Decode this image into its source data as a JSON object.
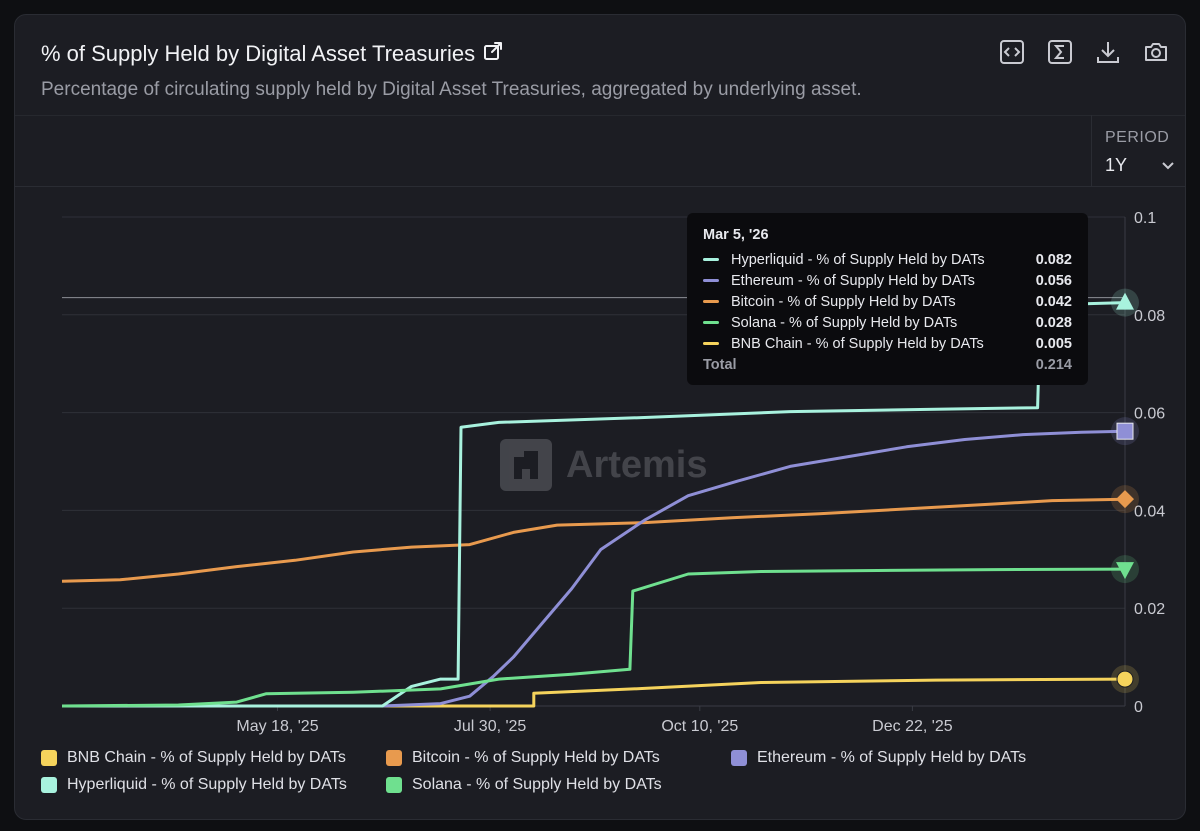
{
  "header": {
    "title": "% of Supply Held by Digital Asset Treasuries",
    "subtitle": "Percentage of circulating supply held by Digital Asset Treasuries, aggregated by underlying asset."
  },
  "toolbar": {
    "icons": [
      "embed-code-icon",
      "sum-icon",
      "download-icon",
      "camera-icon"
    ]
  },
  "period": {
    "label": "PERIOD",
    "value": "1Y"
  },
  "watermark": "Artemis",
  "tooltip": {
    "date": "Mar 5, '26",
    "rows": [
      {
        "label": "Hyperliquid - % of Supply Held by DATs",
        "value": "0.082",
        "color": "#a8f2de"
      },
      {
        "label": "Ethereum - % of Supply Held by DATs",
        "value": "0.056",
        "color": "#8f8fd6"
      },
      {
        "label": "Bitcoin - % of Supply Held by DATs",
        "value": "0.042",
        "color": "#e89a4e"
      },
      {
        "label": "Solana - % of Supply Held by DATs",
        "value": "0.028",
        "color": "#6fe08f"
      },
      {
        "label": "BNB Chain - % of Supply Held by DATs",
        "value": "0.005",
        "color": "#f5d35c"
      }
    ],
    "total_label": "Total",
    "total_value": "0.214"
  },
  "legend": [
    {
      "label": "BNB Chain - % of Supply Held by DATs",
      "color": "#f5d35c"
    },
    {
      "label": "Bitcoin - % of Supply Held by DATs",
      "color": "#e89a4e"
    },
    {
      "label": "Ethereum - % of Supply Held by DATs",
      "color": "#8f8fd6"
    },
    {
      "label": "Hyperliquid - % of Supply Held by DATs",
      "color": "#a8f2de"
    },
    {
      "label": "Solana - % of Supply Held by DATs",
      "color": "#6fe08f"
    }
  ],
  "chart_data": {
    "type": "line",
    "title": "% of Supply Held by Digital Asset Treasuries",
    "xlabel": "",
    "ylabel": "",
    "xlim": [
      0,
      365
    ],
    "ylim": [
      0,
      0.1
    ],
    "y_ticks": [
      "0",
      "0.02",
      "0.04",
      "0.06",
      "0.08",
      "0.1"
    ],
    "x_ticks": [
      {
        "label": "May 18, '25",
        "day": 74
      },
      {
        "label": "Jul 30, '25",
        "day": 147
      },
      {
        "label": "Oct 10, '25",
        "day": 219
      },
      {
        "label": "Dec 22, '25",
        "day": 292
      }
    ],
    "crosshair_value": 0.0835,
    "grid": true,
    "series": [
      {
        "name": "BNB Chain - % of Supply Held by DATs",
        "color": "#f5d35c",
        "marker": "circle",
        "points": [
          [
            0,
            0
          ],
          [
            162,
            0
          ],
          [
            162,
            0.0026
          ],
          [
            200,
            0.0036
          ],
          [
            240,
            0.0048
          ],
          [
            300,
            0.0053
          ],
          [
            365,
            0.0055
          ]
        ]
      },
      {
        "name": "Bitcoin - % of Supply Held by DATs",
        "color": "#e89a4e",
        "marker": "diamond",
        "points": [
          [
            0,
            0.0255
          ],
          [
            20,
            0.0258
          ],
          [
            40,
            0.027
          ],
          [
            60,
            0.0285
          ],
          [
            80,
            0.0298
          ],
          [
            100,
            0.0315
          ],
          [
            120,
            0.0325
          ],
          [
            140,
            0.033
          ],
          [
            155,
            0.0355
          ],
          [
            170,
            0.037
          ],
          [
            200,
            0.0375
          ],
          [
            230,
            0.0385
          ],
          [
            260,
            0.0393
          ],
          [
            290,
            0.0403
          ],
          [
            320,
            0.0413
          ],
          [
            340,
            0.042
          ],
          [
            365,
            0.0423
          ]
        ]
      },
      {
        "name": "Ethereum - % of Supply Held by DATs",
        "color": "#8f8fd6",
        "marker": "square",
        "points": [
          [
            0,
            0
          ],
          [
            110,
            0
          ],
          [
            130,
            0.0005
          ],
          [
            140,
            0.002
          ],
          [
            148,
            0.006
          ],
          [
            155,
            0.01
          ],
          [
            165,
            0.017
          ],
          [
            175,
            0.024
          ],
          [
            185,
            0.032
          ],
          [
            200,
            0.038
          ],
          [
            215,
            0.043
          ],
          [
            232,
            0.046
          ],
          [
            250,
            0.049
          ],
          [
            270,
            0.051
          ],
          [
            290,
            0.053
          ],
          [
            310,
            0.0545
          ],
          [
            330,
            0.0555
          ],
          [
            350,
            0.056
          ],
          [
            365,
            0.0562
          ]
        ]
      },
      {
        "name": "Hyperliquid - % of Supply Held by DATs",
        "color": "#a8f2de",
        "marker": "triangle-up",
        "points": [
          [
            0,
            0
          ],
          [
            110,
            0
          ],
          [
            120,
            0.004
          ],
          [
            130,
            0.0055
          ],
          [
            136,
            0.0055
          ],
          [
            137,
            0.057
          ],
          [
            150,
            0.058
          ],
          [
            200,
            0.059
          ],
          [
            250,
            0.0602
          ],
          [
            300,
            0.0607
          ],
          [
            335,
            0.061
          ],
          [
            336,
            0.082
          ],
          [
            365,
            0.0825
          ]
        ]
      },
      {
        "name": "Solana - % of Supply Held by DATs",
        "color": "#6fe08f",
        "marker": "triangle-down",
        "points": [
          [
            0,
            0
          ],
          [
            40,
            0.0002
          ],
          [
            60,
            0.0008
          ],
          [
            70,
            0.0025
          ],
          [
            100,
            0.0028
          ],
          [
            130,
            0.0035
          ],
          [
            150,
            0.0055
          ],
          [
            175,
            0.0065
          ],
          [
            195,
            0.0075
          ],
          [
            196,
            0.0235
          ],
          [
            215,
            0.027
          ],
          [
            240,
            0.0275
          ],
          [
            280,
            0.0277
          ],
          [
            320,
            0.0279
          ],
          [
            365,
            0.028
          ]
        ]
      }
    ]
  }
}
